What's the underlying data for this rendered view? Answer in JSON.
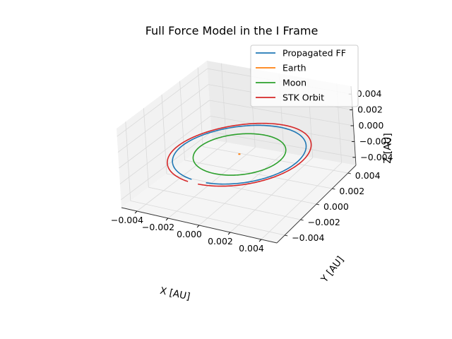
{
  "chart_data": {
    "type": "line3d",
    "title": "Full Force Model in the I Frame",
    "xlabel": "X [AU]",
    "ylabel": "Y [AU]",
    "zlabel": "Z [AU]",
    "xlim": [
      -0.005,
      0.005
    ],
    "ylim": [
      -0.005,
      0.005
    ],
    "zlim": [
      -0.005,
      0.005
    ],
    "x_ticks": [
      "−0.004",
      "−0.002",
      "0.000",
      "0.002",
      "0.004"
    ],
    "y_ticks": [
      "−0.004",
      "−0.002",
      "0.000",
      "0.002",
      "0.004"
    ],
    "z_ticks": [
      "−0.004",
      "−0.002",
      "0.000",
      "0.002",
      "0.004"
    ],
    "tick_values": [
      -0.004,
      -0.002,
      0.0,
      0.002,
      0.004
    ],
    "grid": true,
    "legend_position": "top-right",
    "series": [
      {
        "name": "Propagated FF",
        "color": "#1f77b4",
        "orbit": {
          "radius": 0.0039,
          "tilt_deg": 10,
          "start_deg": -90,
          "sweep_deg": 345
        }
      },
      {
        "name": "Earth",
        "color": "#ff7f0e",
        "point": [
          0.0,
          0.0,
          0.0
        ]
      },
      {
        "name": "Moon",
        "color": "#2ca02c",
        "orbit": {
          "radius": 0.0027,
          "tilt_deg": 5,
          "start_deg": -85,
          "sweep_deg": 380
        }
      },
      {
        "name": "STK Orbit",
        "color": "#d62728",
        "orbit": {
          "radius": 0.0042,
          "tilt_deg": 12,
          "start_deg": -95,
          "sweep_deg": 350
        }
      }
    ]
  }
}
